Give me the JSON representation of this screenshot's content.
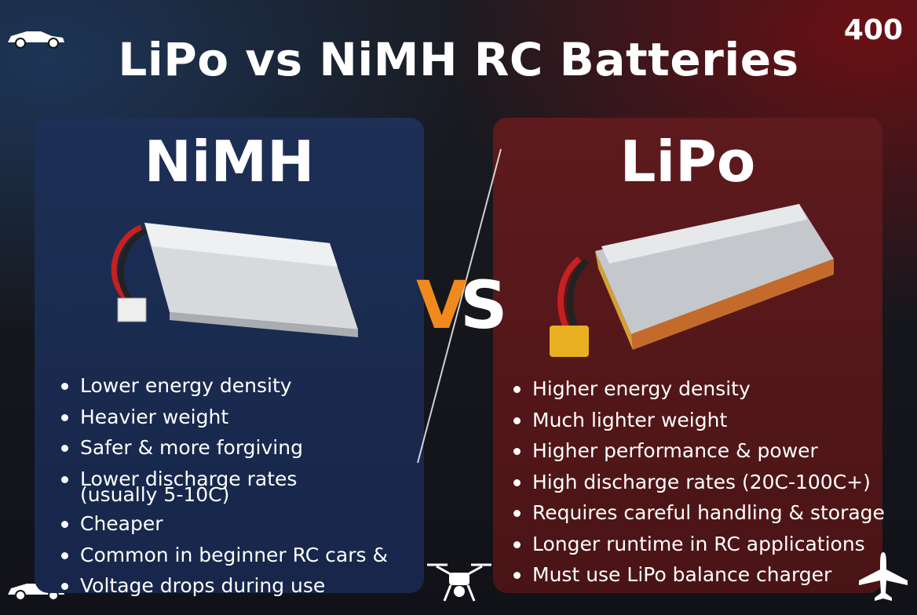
{
  "header": {
    "title": "LiPo vs NiMH RC Batteries",
    "badge": "400"
  },
  "vs": {
    "v": "V",
    "s": "S"
  },
  "panels": [
    {
      "title": "NiMH",
      "items": [
        {
          "text": "Lower energy density"
        },
        {
          "text": "Heavier weight"
        },
        {
          "text": "Safer & more forgiving"
        },
        {
          "text": "Lower discharge rates",
          "note": "(usually 5-10C)"
        },
        {
          "text": "Cheaper"
        },
        {
          "text": "Common in beginner RC cars &"
        },
        {
          "text": "Voltage drops during use"
        }
      ]
    },
    {
      "title": "LiPo",
      "items": [
        {
          "text": "Higher energy density"
        },
        {
          "text": "Much lighter weight"
        },
        {
          "text": "Higher performance & power"
        },
        {
          "text": "High discharge rates (20C-100C+)"
        },
        {
          "text": "Requires careful handling & storage"
        },
        {
          "text": "Longer runtime in RC applications"
        },
        {
          "text": "Must use LiPo balance charger"
        }
      ]
    }
  ]
}
